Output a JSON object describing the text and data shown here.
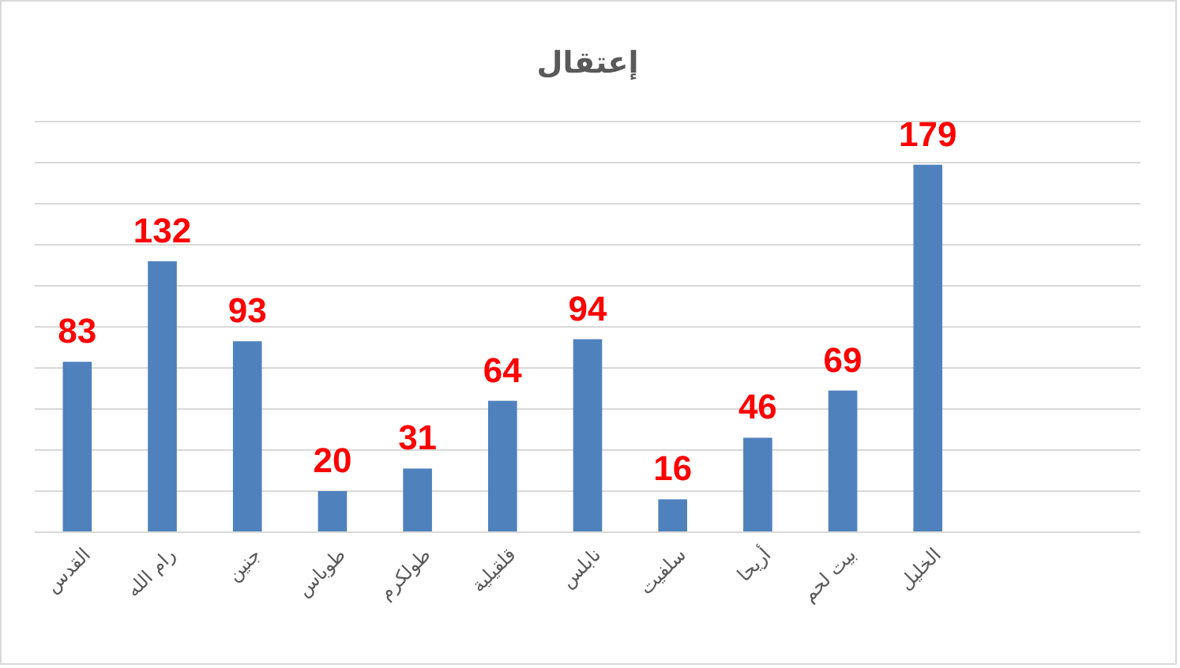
{
  "chart_data": {
    "type": "bar",
    "title": "إعتقال",
    "categories": [
      "القدس",
      "رام الله",
      "جنين",
      "طوباس",
      "طولكرم",
      "قلقيلية",
      "نابلس",
      "سلفيت",
      "أريحا",
      "بيت لحم",
      "الخليل",
      null,
      null
    ],
    "values": [
      83,
      132,
      93,
      20,
      31,
      64,
      94,
      16,
      46,
      69,
      179,
      null,
      null
    ],
    "color": "#4f81bd",
    "ylim": [
      0,
      200
    ],
    "yticks": [
      {
        "value": 0,
        "label": null
      },
      {
        "value": 20,
        "label": null
      },
      {
        "value": 40,
        "label": null
      },
      {
        "value": 60,
        "label": null
      },
      {
        "value": 80,
        "label": null
      },
      {
        "value": 100,
        "label": null
      },
      {
        "value": 120,
        "label": null
      },
      {
        "value": 140,
        "label": null
      },
      {
        "value": 160,
        "label": null
      },
      {
        "value": 180,
        "label": null
      },
      {
        "value": 200,
        "label": null
      }
    ],
    "tick_labels": "x",
    "grid": "y",
    "data_labels": true
  }
}
